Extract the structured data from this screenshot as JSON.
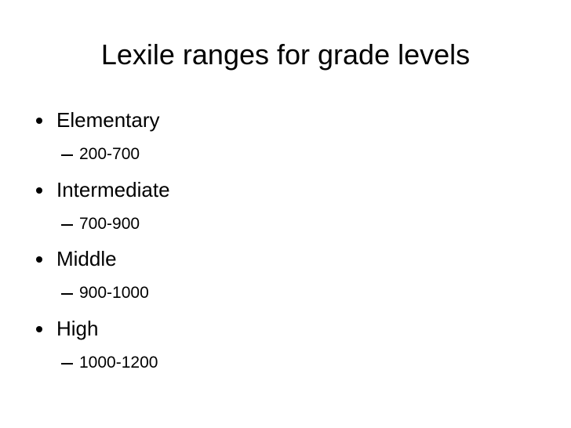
{
  "title": "Lexile ranges for grade levels",
  "items": [
    {
      "label": "Elementary",
      "range": "200-700"
    },
    {
      "label": "Intermediate",
      "range": "700-900"
    },
    {
      "label": "Middle",
      "range": "900-1000"
    },
    {
      "label": "High",
      "range": "1000-1200"
    }
  ]
}
